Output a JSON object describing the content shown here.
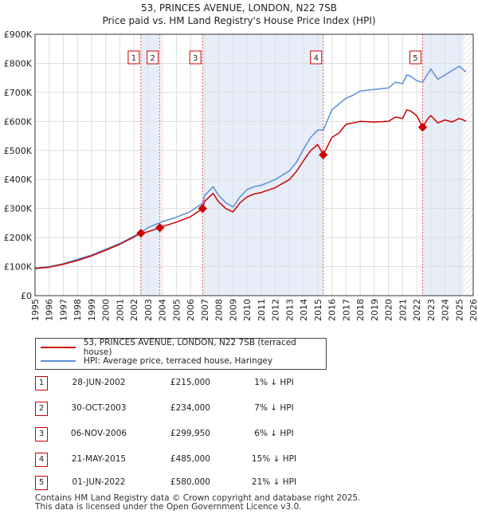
{
  "title": "53, PRINCES AVENUE, LONDON, N22 7SB",
  "subtitle": "Price paid vs. HM Land Registry's House Price Index (HPI)",
  "colors": {
    "property": "#cc0000",
    "hpi": "#5b8fd6",
    "shade": "#e8eef9",
    "grid": "#dddddd",
    "marker_line": "#dd5555"
  },
  "legend": {
    "property_label": "53, PRINCES AVENUE, LONDON, N22 7SB (terraced house)",
    "hpi_label": "HPI: Average price, terraced house, Haringey"
  },
  "sales": [
    {
      "num": "1",
      "date": "28-JUN-2002",
      "price": "£215,000",
      "hpi": "1% ↓ HPI"
    },
    {
      "num": "2",
      "date": "30-OCT-2003",
      "price": "£234,000",
      "hpi": "7% ↓ HPI"
    },
    {
      "num": "3",
      "date": "06-NOV-2006",
      "price": "£299,950",
      "hpi": "6% ↓ HPI"
    },
    {
      "num": "4",
      "date": "21-MAY-2015",
      "price": "£485,000",
      "hpi": "15% ↓ HPI"
    },
    {
      "num": "5",
      "date": "01-JUN-2022",
      "price": "£580,000",
      "hpi": "21% ↓ HPI"
    }
  ],
  "footer": {
    "line1": "Contains HM Land Registry data © Crown copyright and database right 2025.",
    "line2": "This data is licensed under the Open Government Licence v3.0."
  },
  "chart_data": {
    "type": "line",
    "xlim": [
      1995,
      2026
    ],
    "ylim": [
      0,
      900000
    ],
    "x_ticks": [
      "1995",
      "1996",
      "1997",
      "1998",
      "1999",
      "2000",
      "2001",
      "2002",
      "2003",
      "2004",
      "2005",
      "2006",
      "2007",
      "2008",
      "2009",
      "2010",
      "2011",
      "2012",
      "2013",
      "2014",
      "2015",
      "2016",
      "2017",
      "2018",
      "2019",
      "2020",
      "2021",
      "2022",
      "2023",
      "2024",
      "2025",
      "2026"
    ],
    "y_ticks": [
      {
        "value": 0,
        "label": "£0"
      },
      {
        "value": 100000,
        "label": "£100K"
      },
      {
        "value": 200000,
        "label": "£200K"
      },
      {
        "value": 300000,
        "label": "£300K"
      },
      {
        "value": 400000,
        "label": "£400K"
      },
      {
        "value": 500000,
        "label": "£500K"
      },
      {
        "value": 600000,
        "label": "£600K"
      },
      {
        "value": 700000,
        "label": "£700K"
      },
      {
        "value": 800000,
        "label": "£800K"
      },
      {
        "value": 900000,
        "label": "£900K"
      }
    ],
    "shaded_ranges": [
      [
        2002.49,
        2003.83
      ],
      [
        2006.85,
        2015.39
      ],
      [
        2022.42,
        2025.3
      ]
    ],
    "hatch_from": 2025.3,
    "sale_points": [
      {
        "label": "1",
        "x": 2002.49,
        "y": 215000
      },
      {
        "label": "2",
        "x": 2003.83,
        "y": 234000
      },
      {
        "label": "3",
        "x": 2006.85,
        "y": 299950
      },
      {
        "label": "4",
        "x": 2015.39,
        "y": 485000
      },
      {
        "label": "5",
        "x": 2022.42,
        "y": 580000
      }
    ],
    "series": [
      {
        "name": "HPI: Average price, terraced house, Haringey",
        "x": [
          1995,
          1996,
          1997,
          1998,
          1999,
          2000,
          2001,
          2002,
          2002.49,
          2003,
          2003.83,
          2004,
          2005,
          2006,
          2006.85,
          2007,
          2007.6,
          2008,
          2008.5,
          2009,
          2009.5,
          2010,
          2010.5,
          2011,
          2012,
          2013,
          2013.5,
          2014,
          2014.5,
          2015,
          2015.39,
          2016,
          2016.5,
          2017,
          2017.5,
          2018,
          2019,
          2020,
          2020.5,
          2021,
          2021.3,
          2021.6,
          2022,
          2022.42,
          2022.8,
          2023,
          2023.5,
          2024,
          2024.5,
          2025,
          2025.3,
          2025.5
        ],
        "y": [
          95000,
          100000,
          110000,
          125000,
          140000,
          160000,
          180000,
          205000,
          217000,
          235000,
          251000,
          255000,
          270000,
          290000,
          318000,
          345000,
          375000,
          345000,
          320000,
          305000,
          340000,
          365000,
          375000,
          380000,
          400000,
          430000,
          460000,
          505000,
          545000,
          570000,
          570000,
          640000,
          660000,
          680000,
          690000,
          705000,
          710000,
          715000,
          735000,
          730000,
          760000,
          755000,
          740000,
          735000,
          765000,
          780000,
          745000,
          760000,
          775000,
          790000,
          778000,
          770000
        ]
      },
      {
        "name": "53, PRINCES AVENUE, LONDON, N22 7SB (terraced house)",
        "x": [
          1995,
          1996,
          1997,
          1998,
          1999,
          2000,
          2001,
          2002,
          2002.49,
          2003,
          2003.83,
          2004,
          2005,
          2006,
          2006.85,
          2007,
          2007.6,
          2008,
          2008.5,
          2009,
          2009.5,
          2010,
          2010.5,
          2011,
          2012,
          2013,
          2013.5,
          2014,
          2014.5,
          2015,
          2015.39,
          2016,
          2016.5,
          2017,
          2017.5,
          2018,
          2019,
          2020,
          2020.5,
          2021,
          2021.3,
          2021.6,
          2022,
          2022.42,
          2022.8,
          2023,
          2023.5,
          2024,
          2024.5,
          2025,
          2025.3,
          2025.5
        ],
        "y": [
          93000,
          98000,
          108000,
          121000,
          137000,
          156000,
          177000,
          202000,
          215000,
          220000,
          234000,
          238000,
          253000,
          272000,
          299950,
          325000,
          352000,
          322000,
          300000,
          288000,
          320000,
          340000,
          350000,
          355000,
          372000,
          400000,
          428000,
          465000,
          500000,
          520000,
          485000,
          545000,
          560000,
          590000,
          595000,
          600000,
          598000,
          600000,
          615000,
          610000,
          640000,
          635000,
          620000,
          580000,
          610000,
          620000,
          595000,
          605000,
          598000,
          610000,
          605000,
          600000
        ]
      }
    ]
  }
}
